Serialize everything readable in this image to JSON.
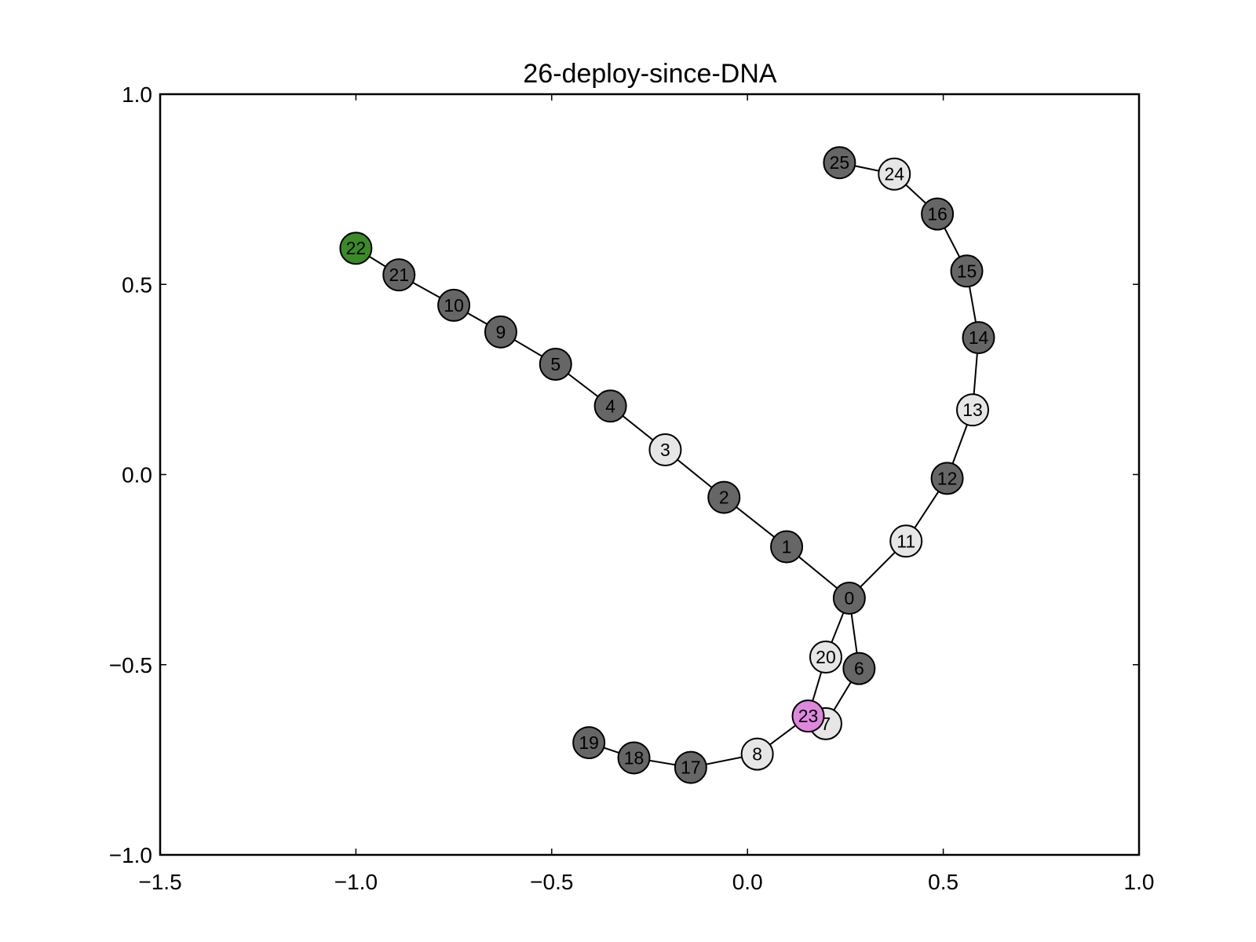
{
  "chart_data": {
    "type": "scatter",
    "title": "26-deploy-since-DNA",
    "xlabel": "",
    "ylabel": "",
    "xlim": [
      -1.5,
      1.0
    ],
    "ylim": [
      -1.0,
      1.0
    ],
    "grid": false,
    "x_ticks": [
      -1.5,
      -1.0,
      -0.5,
      0.0,
      0.5,
      1.0
    ],
    "x_tick_labels": [
      "−1.5",
      "−1.0",
      "−0.5",
      "0.0",
      "0.5",
      "1.0"
    ],
    "y_ticks": [
      -1.0,
      -0.5,
      0.0,
      0.5,
      1.0
    ],
    "y_tick_labels": [
      "−1.0",
      "−0.5",
      "0.0",
      "0.5",
      "1.0"
    ],
    "colors": {
      "dark": "#666666",
      "light": "#e6e6e6",
      "green": "#3a8a26",
      "violet": "#dd88dd"
    },
    "nodes": [
      {
        "id": "0",
        "x": 0.26,
        "y": -0.325,
        "color": "dark"
      },
      {
        "id": "1",
        "x": 0.1,
        "y": -0.19,
        "color": "dark"
      },
      {
        "id": "2",
        "x": -0.06,
        "y": -0.06,
        "color": "dark"
      },
      {
        "id": "3",
        "x": -0.21,
        "y": 0.065,
        "color": "light"
      },
      {
        "id": "4",
        "x": -0.35,
        "y": 0.18,
        "color": "dark"
      },
      {
        "id": "5",
        "x": -0.49,
        "y": 0.29,
        "color": "dark"
      },
      {
        "id": "6",
        "x": 0.285,
        "y": -0.51,
        "color": "dark"
      },
      {
        "id": "7",
        "x": 0.2,
        "y": -0.655,
        "color": "light"
      },
      {
        "id": "8",
        "x": 0.025,
        "y": -0.735,
        "color": "light"
      },
      {
        "id": "9",
        "x": -0.63,
        "y": 0.375,
        "color": "dark"
      },
      {
        "id": "10",
        "x": -0.75,
        "y": 0.445,
        "color": "dark"
      },
      {
        "id": "11",
        "x": 0.405,
        "y": -0.175,
        "color": "light"
      },
      {
        "id": "12",
        "x": 0.51,
        "y": -0.01,
        "color": "dark"
      },
      {
        "id": "13",
        "x": 0.575,
        "y": 0.17,
        "color": "light"
      },
      {
        "id": "14",
        "x": 0.59,
        "y": 0.36,
        "color": "dark"
      },
      {
        "id": "15",
        "x": 0.56,
        "y": 0.535,
        "color": "dark"
      },
      {
        "id": "16",
        "x": 0.485,
        "y": 0.685,
        "color": "dark"
      },
      {
        "id": "17",
        "x": -0.145,
        "y": -0.77,
        "color": "dark"
      },
      {
        "id": "18",
        "x": -0.29,
        "y": -0.745,
        "color": "dark"
      },
      {
        "id": "19",
        "x": -0.405,
        "y": -0.705,
        "color": "dark"
      },
      {
        "id": "20",
        "x": 0.2,
        "y": -0.48,
        "color": "light"
      },
      {
        "id": "21",
        "x": -0.89,
        "y": 0.525,
        "color": "dark"
      },
      {
        "id": "22",
        "x": -1.0,
        "y": 0.595,
        "color": "green"
      },
      {
        "id": "23",
        "x": 0.155,
        "y": -0.635,
        "color": "violet"
      },
      {
        "id": "24",
        "x": 0.375,
        "y": 0.79,
        "color": "light"
      },
      {
        "id": "25",
        "x": 0.235,
        "y": 0.82,
        "color": "dark"
      }
    ],
    "edges": [
      [
        "22",
        "21"
      ],
      [
        "21",
        "10"
      ],
      [
        "10",
        "9"
      ],
      [
        "9",
        "5"
      ],
      [
        "5",
        "4"
      ],
      [
        "4",
        "3"
      ],
      [
        "3",
        "2"
      ],
      [
        "2",
        "1"
      ],
      [
        "1",
        "0"
      ],
      [
        "0",
        "11"
      ],
      [
        "11",
        "12"
      ],
      [
        "12",
        "13"
      ],
      [
        "13",
        "14"
      ],
      [
        "14",
        "15"
      ],
      [
        "15",
        "16"
      ],
      [
        "16",
        "24"
      ],
      [
        "24",
        "25"
      ],
      [
        "0",
        "20"
      ],
      [
        "20",
        "23"
      ],
      [
        "0",
        "6"
      ],
      [
        "6",
        "7"
      ],
      [
        "7",
        "23"
      ],
      [
        "23",
        "8"
      ],
      [
        "8",
        "17"
      ],
      [
        "17",
        "18"
      ],
      [
        "18",
        "19"
      ]
    ]
  }
}
